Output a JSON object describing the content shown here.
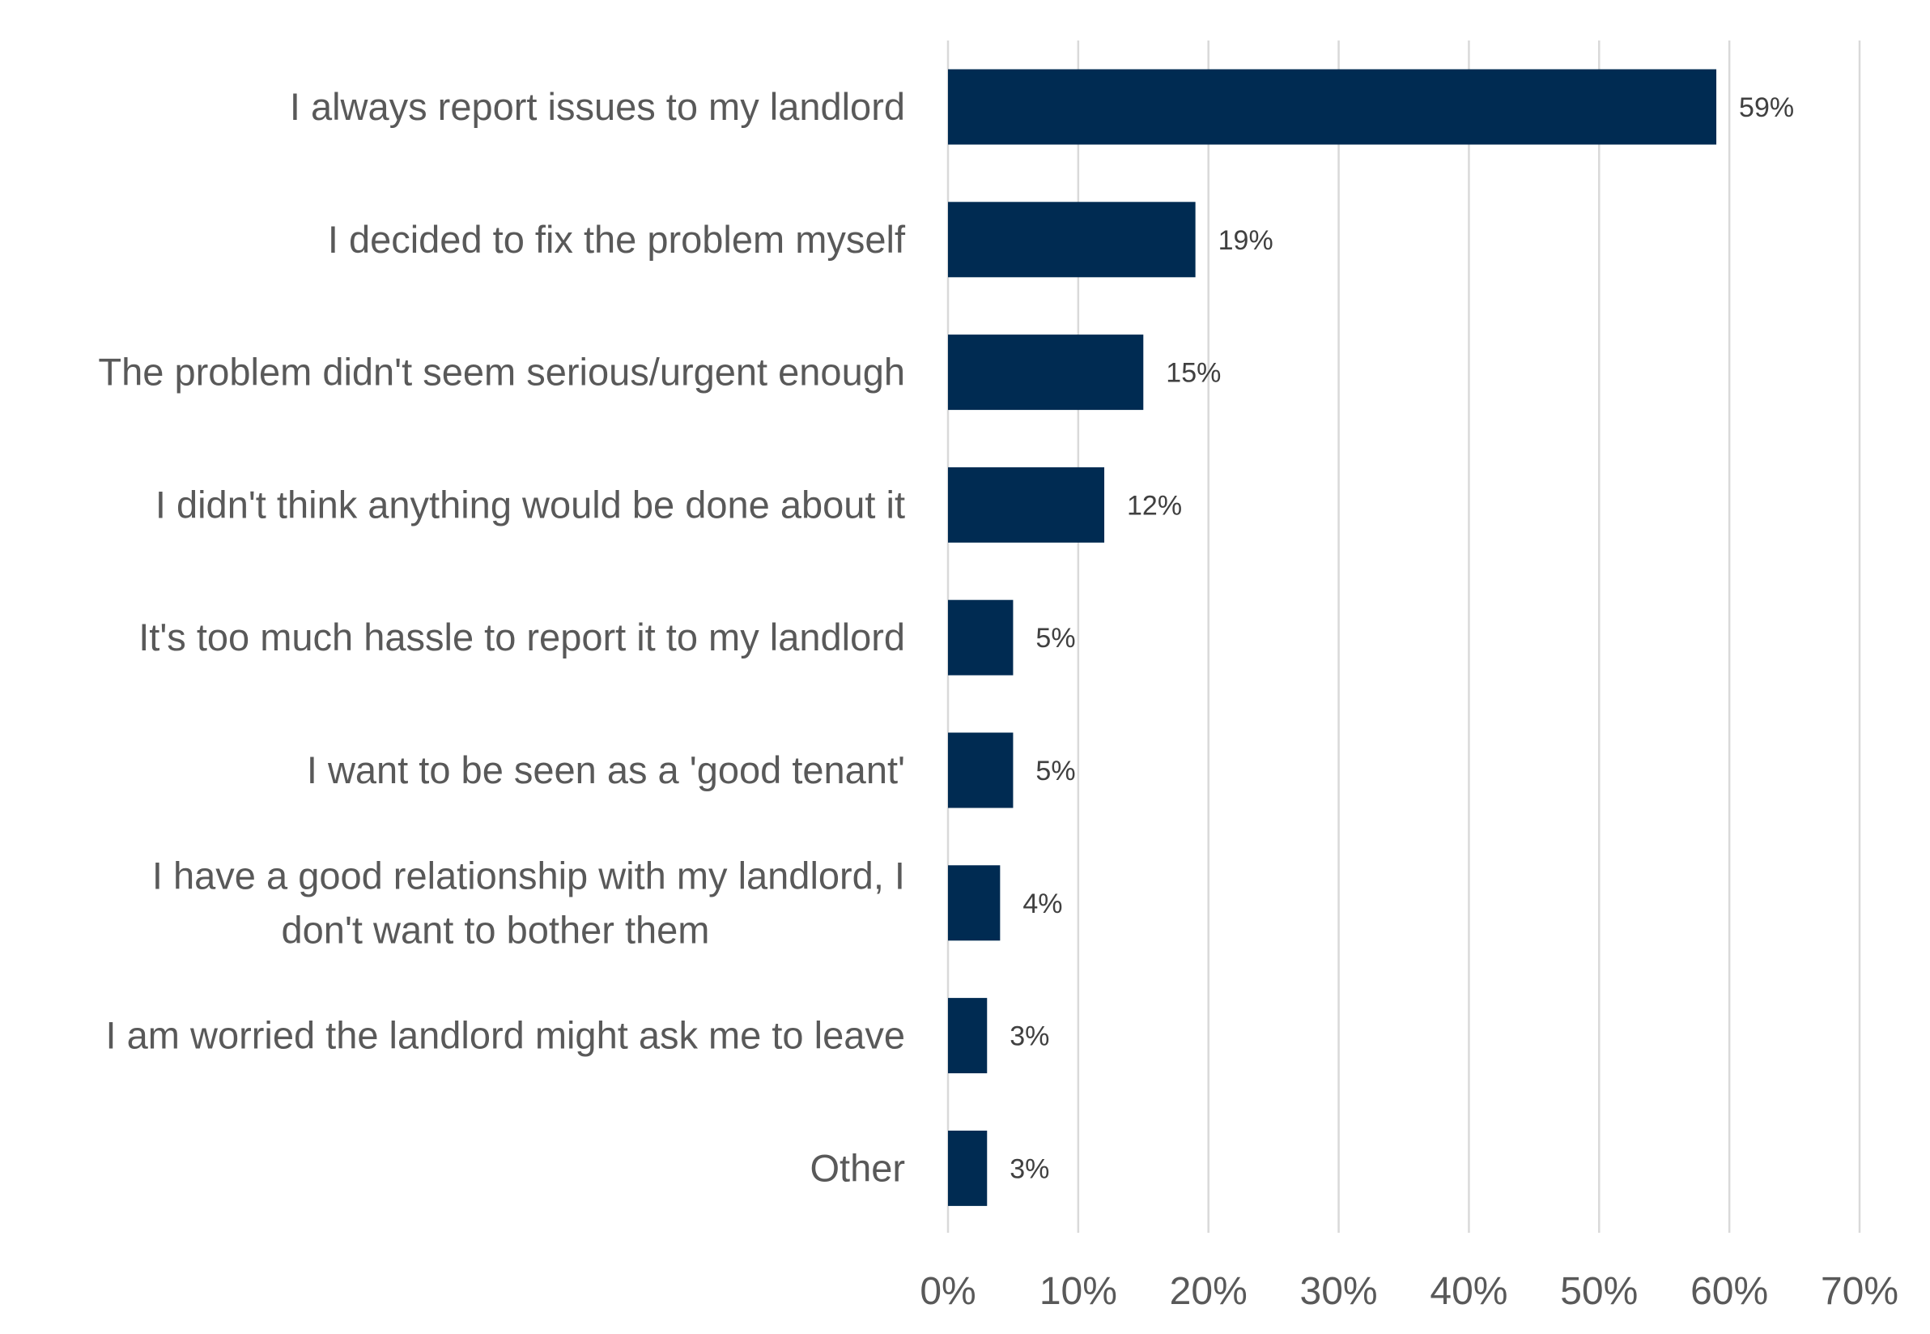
{
  "chart_data": {
    "type": "bar",
    "orientation": "horizontal",
    "title": "",
    "xlabel": "",
    "ylabel": "",
    "categories": [
      [
        "I always report issues to my landlord"
      ],
      [
        "I decided to fix the problem myself"
      ],
      [
        "The problem didn't seem serious/urgent enough"
      ],
      [
        "I didn't think anything would be done about it"
      ],
      [
        "It's too much hassle to report it to my landlord"
      ],
      [
        "I want to be seen as a 'good tenant'"
      ],
      [
        "I have a good relationship with my landlord, I",
        "don't want to bother them"
      ],
      [
        "I am worried the landlord might ask me to leave"
      ],
      [
        "Other"
      ]
    ],
    "values": [
      59,
      19,
      15,
      12,
      5,
      5,
      4,
      3,
      3
    ],
    "data_labels": [
      "59%",
      "19%",
      "15%",
      "12%",
      "5%",
      "5%",
      "4%",
      "3%",
      "3%"
    ],
    "xlim": [
      0,
      70
    ],
    "x_ticks": [
      0,
      10,
      20,
      30,
      40,
      50,
      60,
      70
    ],
    "x_tick_labels": [
      "0%",
      "10%",
      "20%",
      "30%",
      "40%",
      "50%",
      "60%",
      "70%"
    ],
    "grid": true,
    "legend": "none",
    "colors": {
      "bar": "#002B52",
      "grid": "#d9d9d9",
      "label_text": "#595959",
      "value_text": "#404040"
    }
  }
}
